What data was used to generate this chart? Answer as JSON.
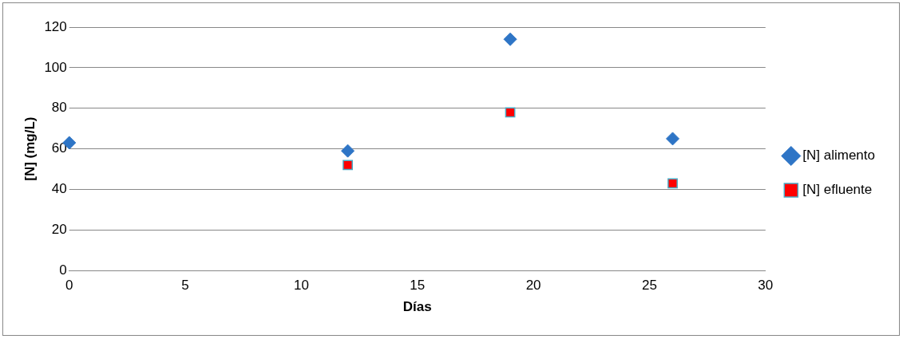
{
  "chart_data": {
    "type": "scatter",
    "xlabel": "Días",
    "ylabel": "[N] (mg/L)",
    "xlim": [
      0,
      30
    ],
    "xticks": [
      0,
      5,
      10,
      15,
      20,
      25,
      30
    ],
    "ylim": [
      0,
      120
    ],
    "yticks": [
      0,
      20,
      40,
      60,
      80,
      100,
      120
    ],
    "grid": "y",
    "legend": "right",
    "series": [
      {
        "name": "[N] alimento",
        "color": "#2e75c6",
        "marker": "diamond",
        "x": [
          0,
          12,
          19,
          26
        ],
        "values": [
          63,
          59,
          114,
          65
        ]
      },
      {
        "name": "[N] efluente",
        "color": "#ff0000",
        "marker": "square",
        "x": [
          12,
          19,
          26
        ],
        "values": [
          52,
          78,
          43
        ]
      }
    ]
  }
}
